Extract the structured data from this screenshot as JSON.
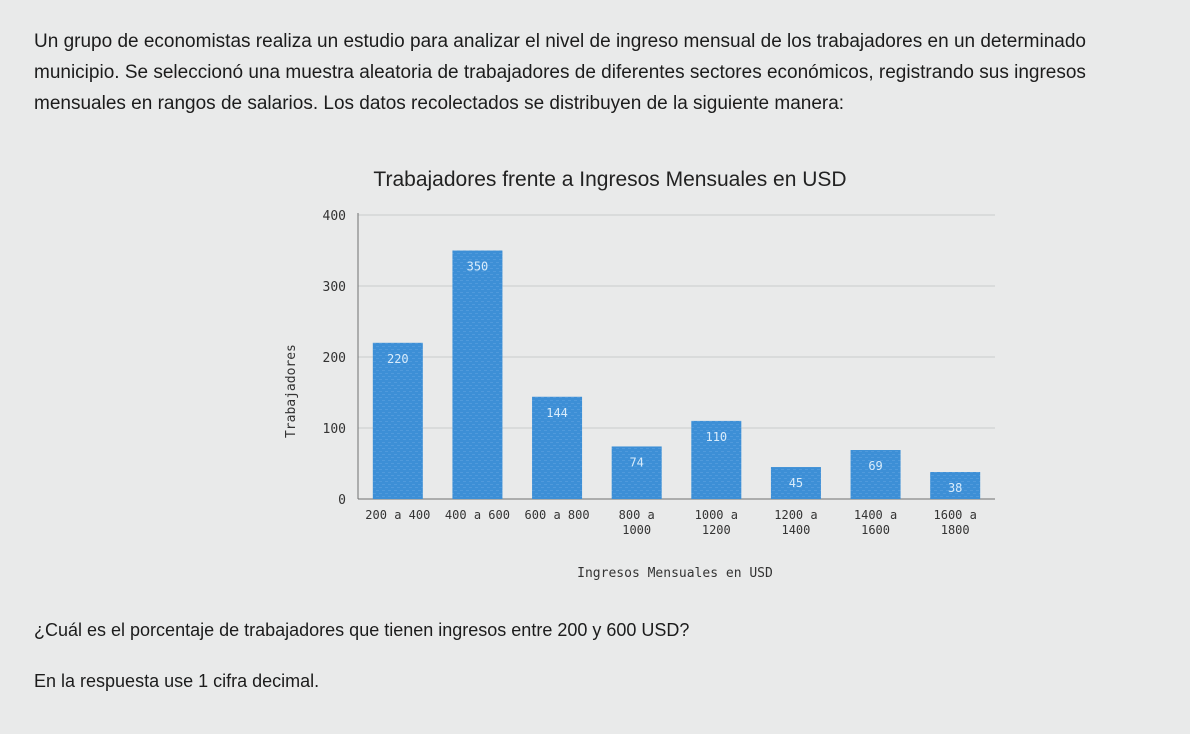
{
  "problem": {
    "intro": "Un grupo de economistas realiza un estudio para analizar el nivel de ingreso mensual de los trabajadores en un determinado municipio. Se seleccionó una muestra aleatoria de trabajadores de diferentes sectores económicos, registrando sus ingresos mensuales en rangos de salarios. Los datos recolectados se distribuyen de la siguiente manera:",
    "question": "¿Cuál es el porcentaje de trabajadores que tienen ingresos entre 200 y 600 USD?",
    "note": "En la respuesta use 1 cifra decimal."
  },
  "chart_data": {
    "type": "bar",
    "title": "Trabajadores frente a Ingresos Mensuales en USD",
    "xlabel": "Ingresos Mensuales en USD",
    "ylabel": "Trabajadores",
    "categories": [
      [
        "200 a 400"
      ],
      [
        "400 a 600"
      ],
      [
        "600 a 800"
      ],
      [
        "800 a",
        "1000"
      ],
      [
        "1000 a",
        "1200"
      ],
      [
        "1200 a",
        "1400"
      ],
      [
        "1400 a",
        "1600"
      ],
      [
        "1600 a",
        "1800"
      ]
    ],
    "values": [
      220,
      350,
      144,
      74,
      110,
      45,
      69,
      38
    ],
    "data_labels": [
      "220",
      "350",
      "144",
      "74",
      "110",
      "45",
      "69",
      "38"
    ],
    "yticks": [
      0,
      100,
      200,
      300,
      400
    ],
    "ytick_labels": [
      "0",
      "100",
      "200",
      "300",
      "400"
    ],
    "ylim": [
      0,
      400
    ],
    "grid": true,
    "bar_color": "#3d8fd6",
    "grid_color": "#c9cccc",
    "axis_color": "#707070"
  }
}
